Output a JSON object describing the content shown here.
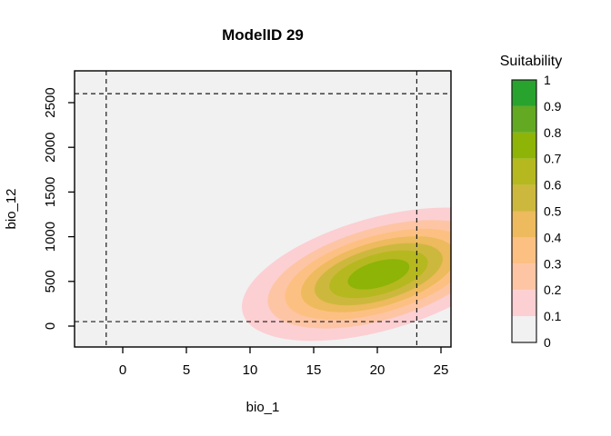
{
  "title": "ModelID 29",
  "x_axis": {
    "label": "bio_1",
    "ticks": [
      "0",
      "5",
      "10",
      "15",
      "20",
      "25"
    ],
    "tick_values": [
      0,
      5,
      10,
      15,
      20,
      25
    ]
  },
  "y_axis": {
    "label": "bio_12",
    "ticks": [
      "0",
      "500",
      "1000",
      "1500",
      "2000",
      "2500"
    ],
    "tick_values": [
      0,
      500,
      1000,
      1500,
      2000,
      2500
    ]
  },
  "legend": {
    "title": "Suitability",
    "tick_labels": [
      "0",
      "0.1",
      "0.2",
      "0.3",
      "0.4",
      "0.5",
      "0.6",
      "0.7",
      "0.8",
      "0.9",
      "1"
    ],
    "colors_bottom_to_top": [
      "#f1f1f2",
      "#fccfd2",
      "#fdc5a4",
      "#fdc083",
      "#edba5d",
      "#cdb83e",
      "#b6b81f",
      "#8db407",
      "#63aa22",
      "#28a32e"
    ]
  },
  "chart_data": {
    "type": "area",
    "subtype": "filled-contour suitability ellipses (bivariate normal niche model)",
    "xlabel": "bio_1",
    "ylabel": "bio_12",
    "x_range": [
      -3.8,
      25.8
    ],
    "y_range": [
      -235,
      2860
    ],
    "grid": false,
    "legend_position": "right",
    "background_level": {
      "range": [
        0,
        0.1
      ],
      "color": "#f1f1f2"
    },
    "contours": [
      {
        "level": 0.1,
        "color": "#fccfd2",
        "semi_axis_x": 11.1,
        "semi_axis_y": 630
      },
      {
        "level": 0.2,
        "color": "#fdc5a4",
        "semi_axis_x": 9.0,
        "semi_axis_y": 513
      },
      {
        "level": 0.3,
        "color": "#fdc083",
        "semi_axis_x": 7.6,
        "semi_axis_y": 430
      },
      {
        "level": 0.4,
        "color": "#edba5d",
        "semi_axis_x": 6.3,
        "semi_axis_y": 360
      },
      {
        "level": 0.5,
        "color": "#cdb83e",
        "semi_axis_x": 5.2,
        "semi_axis_y": 294
      },
      {
        "level": 0.6,
        "color": "#b6b81f",
        "semi_axis_x": 4.0,
        "semi_axis_y": 226
      },
      {
        "level": 0.7,
        "color": "#8db407",
        "semi_axis_x": 2.5,
        "semi_axis_y": 144
      }
    ],
    "ellipse_center": {
      "x": 20.1,
      "y": 580
    },
    "ellipse_rotation_deg": 16,
    "reference_lines_dashed": {
      "x": [
        -1.3,
        23.1
      ],
      "y": [
        50,
        2600
      ]
    }
  }
}
